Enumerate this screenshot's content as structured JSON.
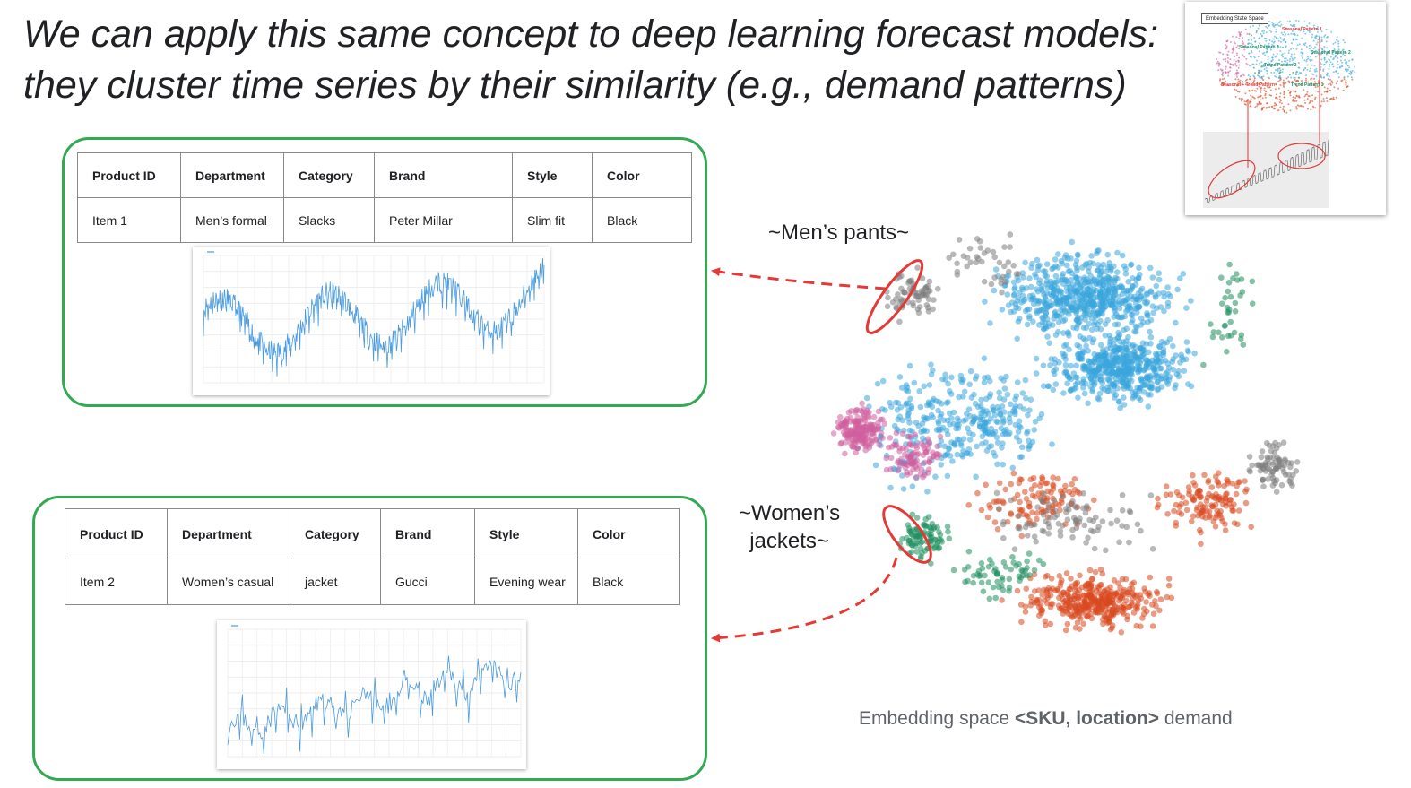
{
  "slide": {
    "title_line1": "We can apply this same concept to deep learning forecast models:",
    "title_line2": "they cluster time series by their similarity (e.g., demand patterns)"
  },
  "card1": {
    "headers": [
      "Product ID",
      "Department",
      "Category",
      "Brand",
      "Style",
      "Color"
    ],
    "row": [
      "Item 1",
      "Men’s formal",
      "Slacks",
      "Peter Millar",
      "Slim fit",
      "Black"
    ]
  },
  "card2": {
    "headers": [
      "Product ID",
      "Department",
      "Category",
      "Brand",
      "Style",
      "Color"
    ],
    "row": [
      "Item 2",
      "Women’s casual",
      "jacket",
      "Gucci",
      "Evening wear",
      "Black"
    ]
  },
  "embedding": {
    "label_men_pants": "~Men’s pants~",
    "label_women_jackets_line1": "~Women’s",
    "label_women_jackets_line2": "jackets~",
    "caption_prefix": "Embedding space ",
    "caption_bold": "<SKU, location>",
    "caption_suffix": " demand",
    "colors": {
      "blue": "#3aa6dc",
      "pink": "#cf5f9e",
      "orange": "#d9481f",
      "green": "#1f8f5f",
      "gray": "#7d7d7d",
      "highlight": "#e53935",
      "card_border": "#34a853",
      "plot_line": "#4a9be0"
    }
  },
  "thumbnail": {
    "title": "Embedding State Space",
    "labels": [
      "Seasonal Pattern 1",
      "Seasonal Pattern 2",
      "Seasonal Pattern 3",
      "Trend Pattern 1",
      "Trend Pattern 2",
      "Seasonal + Trend Pattern"
    ]
  }
}
